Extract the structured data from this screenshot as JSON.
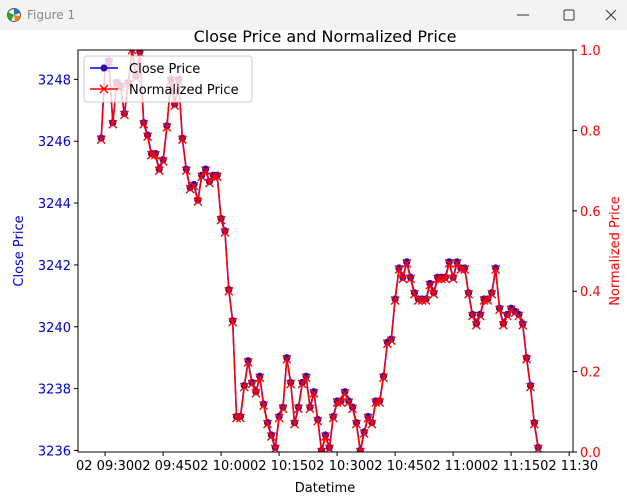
{
  "window": {
    "title": "Figure 1",
    "icon": "matplotlib-icon",
    "controls": [
      "minimize-icon",
      "maximize-icon",
      "close-icon"
    ]
  },
  "chart_data": {
    "type": "line",
    "title": "Close Price and Normalized Price",
    "xlabel": "Datetime",
    "ylabel_left": "Close Price",
    "ylabel_right": "Normalized Price",
    "x_ticks": [
      "02 09:30",
      "02 09:45",
      "02 10:00",
      "02 10:15",
      "02 10:30",
      "02 10:45",
      "02 11:00",
      "02 11:15",
      "02 11:30"
    ],
    "y_left_ticks": [
      "3236",
      "3238",
      "3240",
      "3242",
      "3244",
      "3246",
      "3248"
    ],
    "y_right_ticks": [
      "0.0",
      "0.2",
      "0.4",
      "0.6",
      "0.8",
      "1.0"
    ],
    "y_left_range": [
      3235.95,
      3248.95
    ],
    "y_right_range": [
      0,
      1
    ],
    "x_range_minutes": [
      -7,
      121
    ],
    "legend_position": "upper-left",
    "colors": {
      "close": "#0000ff",
      "close_marker": "#2d0fa8",
      "normalized": "#ff0000",
      "left_axis": "#0000cd",
      "right_axis": "#ff0000"
    },
    "series": [
      {
        "name": "Close Price",
        "x_start_minutes": -1,
        "x_step_minutes": 1,
        "values": [
          3246.1,
          3248.4,
          3248.6,
          3246.6,
          3247.9,
          3247.8,
          3246.9,
          3247.9,
          3249.0,
          3248.1,
          3248.9,
          3246.6,
          3246.2,
          3245.6,
          3245.6,
          3245.1,
          3245.4,
          3246.5,
          3248.0,
          3247.2,
          3248.0,
          3246.1,
          3245.1,
          3244.5,
          3244.6,
          3244.1,
          3244.9,
          3245.1,
          3244.7,
          3244.9,
          3244.9,
          3243.5,
          3243.1,
          3241.2,
          3240.2,
          3237.1,
          3237.1,
          3238.1,
          3238.9,
          3238.2,
          3237.9,
          3238.4,
          3237.5,
          3236.9,
          3236.5,
          3236.1,
          3237.1,
          3237.4,
          3239.0,
          3238.2,
          3236.9,
          3237.4,
          3238.2,
          3238.4,
          3237.4,
          3237.9,
          3237.0,
          3236.0,
          3236.5,
          3236.1,
          3237.1,
          3237.6,
          3237.6,
          3237.9,
          3237.6,
          3237.4,
          3236.9,
          3236.0,
          3236.6,
          3237.1,
          3236.9,
          3237.6,
          3237.6,
          3238.4,
          3239.5,
          3239.6,
          3240.9,
          3241.9,
          3241.6,
          3242.1,
          3241.6,
          3241.1,
          3240.9,
          3240.9,
          3240.9,
          3241.4,
          3241.1,
          3241.6,
          3241.6,
          3241.6,
          3242.1,
          3241.6,
          3242.1,
          3241.9,
          3241.9,
          3241.1,
          3240.4,
          3240.1,
          3240.4,
          3240.9,
          3240.9,
          3241.1,
          3241.9,
          3240.6,
          3240.1,
          3240.4,
          3240.6,
          3240.5,
          3240.4,
          3240.1,
          3239.0,
          3238.1,
          3236.9,
          3236.1
        ]
      },
      {
        "name": "Normalized Price",
        "derived_from": "Close Price (min-max scaled)"
      }
    ]
  }
}
